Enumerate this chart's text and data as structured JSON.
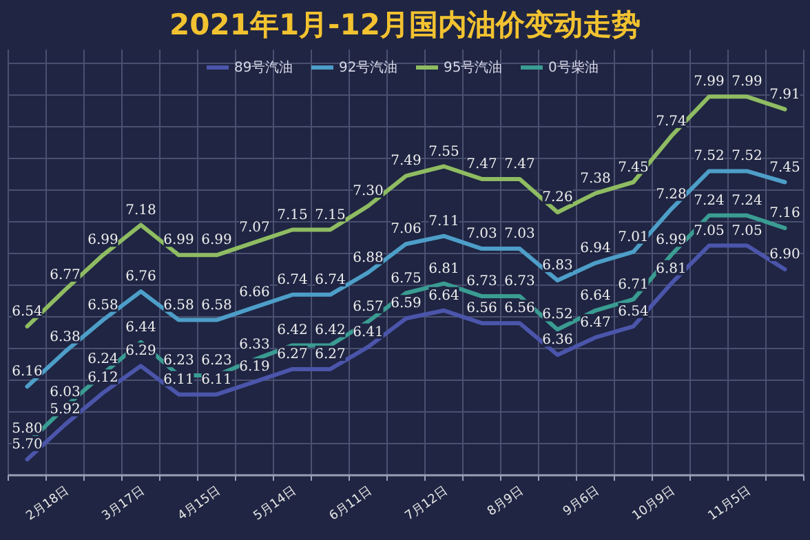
{
  "chart_data": {
    "type": "line",
    "title": "2021年1月-12月国内油价变动走势",
    "categories": [
      null,
      "2月18日",
      null,
      "3月17日",
      null,
      "4月15日",
      null,
      "5月14日",
      null,
      "6月11日",
      null,
      "7月12日",
      null,
      "8月9日",
      null,
      "9月6日",
      null,
      "10月9日",
      null,
      "11月5日",
      null
    ],
    "series": [
      {
        "name": "89号汽油",
        "color": "#4b55aa",
        "values": [
          5.7,
          5.92,
          6.12,
          6.29,
          6.11,
          6.11,
          6.19,
          6.27,
          6.27,
          6.41,
          6.59,
          6.64,
          6.56,
          6.56,
          6.36,
          6.47,
          6.54,
          6.81,
          7.05,
          7.05,
          6.9
        ],
        "value_labels": [
          "5.70",
          "5.92",
          "6.12",
          "6.29",
          "6.11",
          "6.11",
          "6.19",
          "6.27",
          "6.27",
          "6.41",
          "6.59",
          "6.64",
          "6.56",
          "6.56",
          "6.36",
          "6.47",
          "6.54",
          "6.81",
          "7.05",
          "7.05",
          "6.90"
        ]
      },
      {
        "name": "92号汽油",
        "color": "#4d9ec8",
        "values": [
          6.16,
          6.38,
          6.58,
          6.76,
          6.58,
          6.58,
          6.66,
          6.74,
          6.74,
          6.88,
          7.06,
          7.11,
          7.03,
          7.03,
          6.83,
          6.94,
          7.01,
          7.28,
          7.52,
          7.52,
          7.45
        ],
        "value_labels": [
          "6.16",
          "6.38",
          "6.58",
          "6.76",
          "6.58",
          "6.58",
          "6.66",
          "6.74",
          "6.74",
          "6.88",
          "7.06",
          "7.11",
          "7.03",
          "7.03",
          "6.83",
          "6.94",
          "7.01",
          "7.28",
          "7.52",
          "7.52",
          "7.45"
        ]
      },
      {
        "name": "95号汽油",
        "color": "#8fbc62",
        "values": [
          6.54,
          6.77,
          6.99,
          7.18,
          6.99,
          6.99,
          7.07,
          7.15,
          7.15,
          7.3,
          7.49,
          7.55,
          7.47,
          7.47,
          7.26,
          7.38,
          7.45,
          7.74,
          7.99,
          7.99,
          7.91
        ],
        "value_labels": [
          "6.54",
          "6.77",
          "6.99",
          "7.18",
          "6.99",
          "6.99",
          "7.07",
          "7.15",
          "7.15",
          "7.30",
          "7.49",
          "7.55",
          "7.47",
          "7.47",
          "7.26",
          "7.38",
          "7.45",
          "7.74",
          "7.99",
          "7.99",
          "7.91"
        ]
      },
      {
        "name": "0号柴油",
        "color": "#3a9c92",
        "values": [
          5.8,
          6.03,
          6.24,
          6.44,
          6.23,
          6.23,
          6.33,
          6.42,
          6.42,
          6.57,
          6.75,
          6.81,
          6.73,
          6.73,
          6.52,
          6.64,
          6.71,
          6.99,
          7.24,
          7.24,
          7.16
        ],
        "value_labels": [
          "5.80",
          "6.03",
          "6.24",
          "6.44",
          "6.23",
          "6.23",
          "6.33",
          "6.42",
          "6.42",
          "6.57",
          "6.75",
          "6.81",
          "6.73",
          "6.73",
          "6.52",
          "6.64",
          "6.71",
          "6.99",
          "7.24",
          "7.24",
          "7.16"
        ]
      }
    ],
    "ylim": [
      5.6,
      8.2
    ],
    "yticks": [
      {
        "value": 5.6,
        "label": null
      },
      {
        "value": 5.8,
        "label": null
      },
      {
        "value": 6.0,
        "label": null
      },
      {
        "value": 6.2,
        "label": null
      },
      {
        "value": 6.4,
        "label": null
      },
      {
        "value": 6.6,
        "label": null
      },
      {
        "value": 6.8,
        "label": null
      },
      {
        "value": 7.0,
        "label": null
      },
      {
        "value": 7.2,
        "label": null
      },
      {
        "value": 7.4,
        "label": null
      },
      {
        "value": 7.6,
        "label": null
      },
      {
        "value": 7.8,
        "label": null
      },
      {
        "value": 8.0,
        "label": null
      },
      {
        "value": 8.2,
        "label": null
      }
    ],
    "tick_labels": "x",
    "grid": true,
    "legend": "top",
    "marker": "none",
    "line_style": "solid"
  }
}
